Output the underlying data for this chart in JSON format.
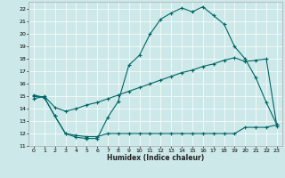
{
  "xlabel": "Humidex (Indice chaleur)",
  "bg_color": "#cce8e8",
  "line_color": "#006666",
  "grid_color": "#ffffff",
  "xlim": [
    -0.5,
    23.5
  ],
  "ylim": [
    11,
    22.6
  ],
  "yticks": [
    11,
    12,
    13,
    14,
    15,
    16,
    17,
    18,
    19,
    20,
    21,
    22
  ],
  "xticks": [
    0,
    1,
    2,
    3,
    4,
    5,
    6,
    7,
    8,
    9,
    10,
    11,
    12,
    13,
    14,
    15,
    16,
    17,
    18,
    19,
    20,
    21,
    22,
    23
  ],
  "line1_x": [
    0,
    1,
    2,
    3,
    4,
    5,
    6,
    7,
    8,
    9,
    10,
    11,
    12,
    13,
    14,
    15,
    16,
    17,
    18,
    19,
    20,
    21,
    22,
    23
  ],
  "line1_y": [
    15.1,
    14.9,
    13.4,
    12.0,
    11.7,
    11.6,
    11.6,
    13.3,
    14.6,
    17.5,
    18.3,
    20.0,
    21.2,
    21.7,
    22.1,
    21.8,
    22.2,
    21.5,
    20.8,
    19.0,
    18.0,
    16.5,
    14.5,
    12.7
  ],
  "line2_x": [
    0,
    1,
    2,
    3,
    4,
    5,
    6,
    7,
    8,
    9,
    10,
    11,
    12,
    13,
    14,
    15,
    16,
    17,
    18,
    19,
    20,
    21,
    22,
    23
  ],
  "line2_y": [
    14.8,
    15.0,
    14.1,
    13.8,
    14.0,
    14.3,
    14.5,
    14.8,
    15.1,
    15.4,
    15.7,
    16.0,
    16.3,
    16.6,
    16.9,
    17.1,
    17.4,
    17.6,
    17.9,
    18.1,
    17.8,
    17.9,
    18.0,
    12.6
  ],
  "line3_x": [
    0,
    1,
    2,
    3,
    4,
    5,
    6,
    7,
    8,
    9,
    10,
    11,
    12,
    13,
    14,
    15,
    16,
    17,
    18,
    19,
    20,
    21,
    22,
    23
  ],
  "line3_y": [
    15.0,
    14.9,
    13.4,
    12.0,
    11.85,
    11.75,
    11.75,
    12.0,
    12.0,
    12.0,
    12.0,
    12.0,
    12.0,
    12.0,
    12.0,
    12.0,
    12.0,
    12.0,
    12.0,
    12.0,
    12.5,
    12.5,
    12.5,
    12.7
  ]
}
